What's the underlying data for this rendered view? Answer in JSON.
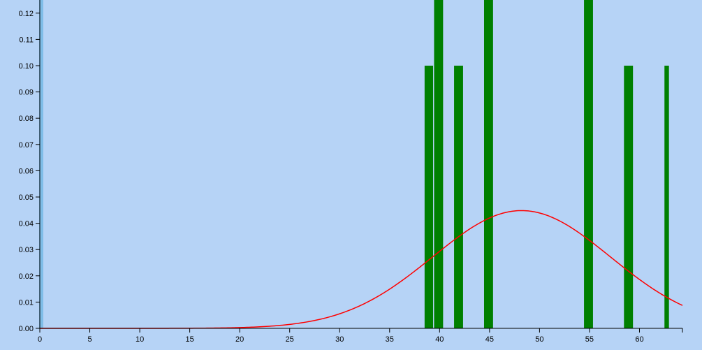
{
  "colors": {
    "background": "#b6d3f6",
    "bar": "#008000",
    "curve": "#ff0000",
    "axis": "#000000",
    "left_edge": "#7fbde8"
  },
  "chart_data": {
    "type": "bar",
    "title": "",
    "xlabel": "",
    "ylabel": "",
    "xlim": [
      0,
      64.3
    ],
    "ylim": [
      0,
      0.125
    ],
    "x_ticks": [
      0,
      5,
      10,
      15,
      20,
      25,
      30,
      35,
      40,
      45,
      50,
      55,
      60
    ],
    "x_tick_labels": [
      "0",
      "5",
      "10",
      "15",
      "20",
      "25",
      "30",
      "35",
      "40",
      "45",
      "50",
      "55",
      "60"
    ],
    "y_ticks": [
      0,
      0.01,
      0.02,
      0.03,
      0.04,
      0.05,
      0.06,
      0.07,
      0.08,
      0.09,
      0.1,
      0.11,
      0.12
    ],
    "y_tick_labels": [
      "0.00",
      "0.01",
      "0.02",
      "0.03",
      "0.04",
      "0.05",
      "0.06",
      "0.07",
      "0.08",
      "0.09",
      "0.10",
      "0.11",
      "0.12"
    ],
    "bars": [
      {
        "x0": 38.5,
        "x1": 39.35,
        "value": 0.1
      },
      {
        "x0": 39.45,
        "x1": 40.35,
        "value": 0.125
      },
      {
        "x0": 41.45,
        "x1": 42.35,
        "value": 0.1
      },
      {
        "x0": 44.45,
        "x1": 45.35,
        "value": 0.125
      },
      {
        "x0": 54.45,
        "x1": 55.35,
        "value": 0.125
      },
      {
        "x0": 58.45,
        "x1": 59.35,
        "value": 0.1
      },
      {
        "x0": 62.5,
        "x1": 62.95,
        "value": 0.1
      }
    ],
    "curve": {
      "type": "normal",
      "mean": 48.2,
      "sd": 8.9,
      "x_range": [
        0,
        64.3
      ]
    }
  }
}
